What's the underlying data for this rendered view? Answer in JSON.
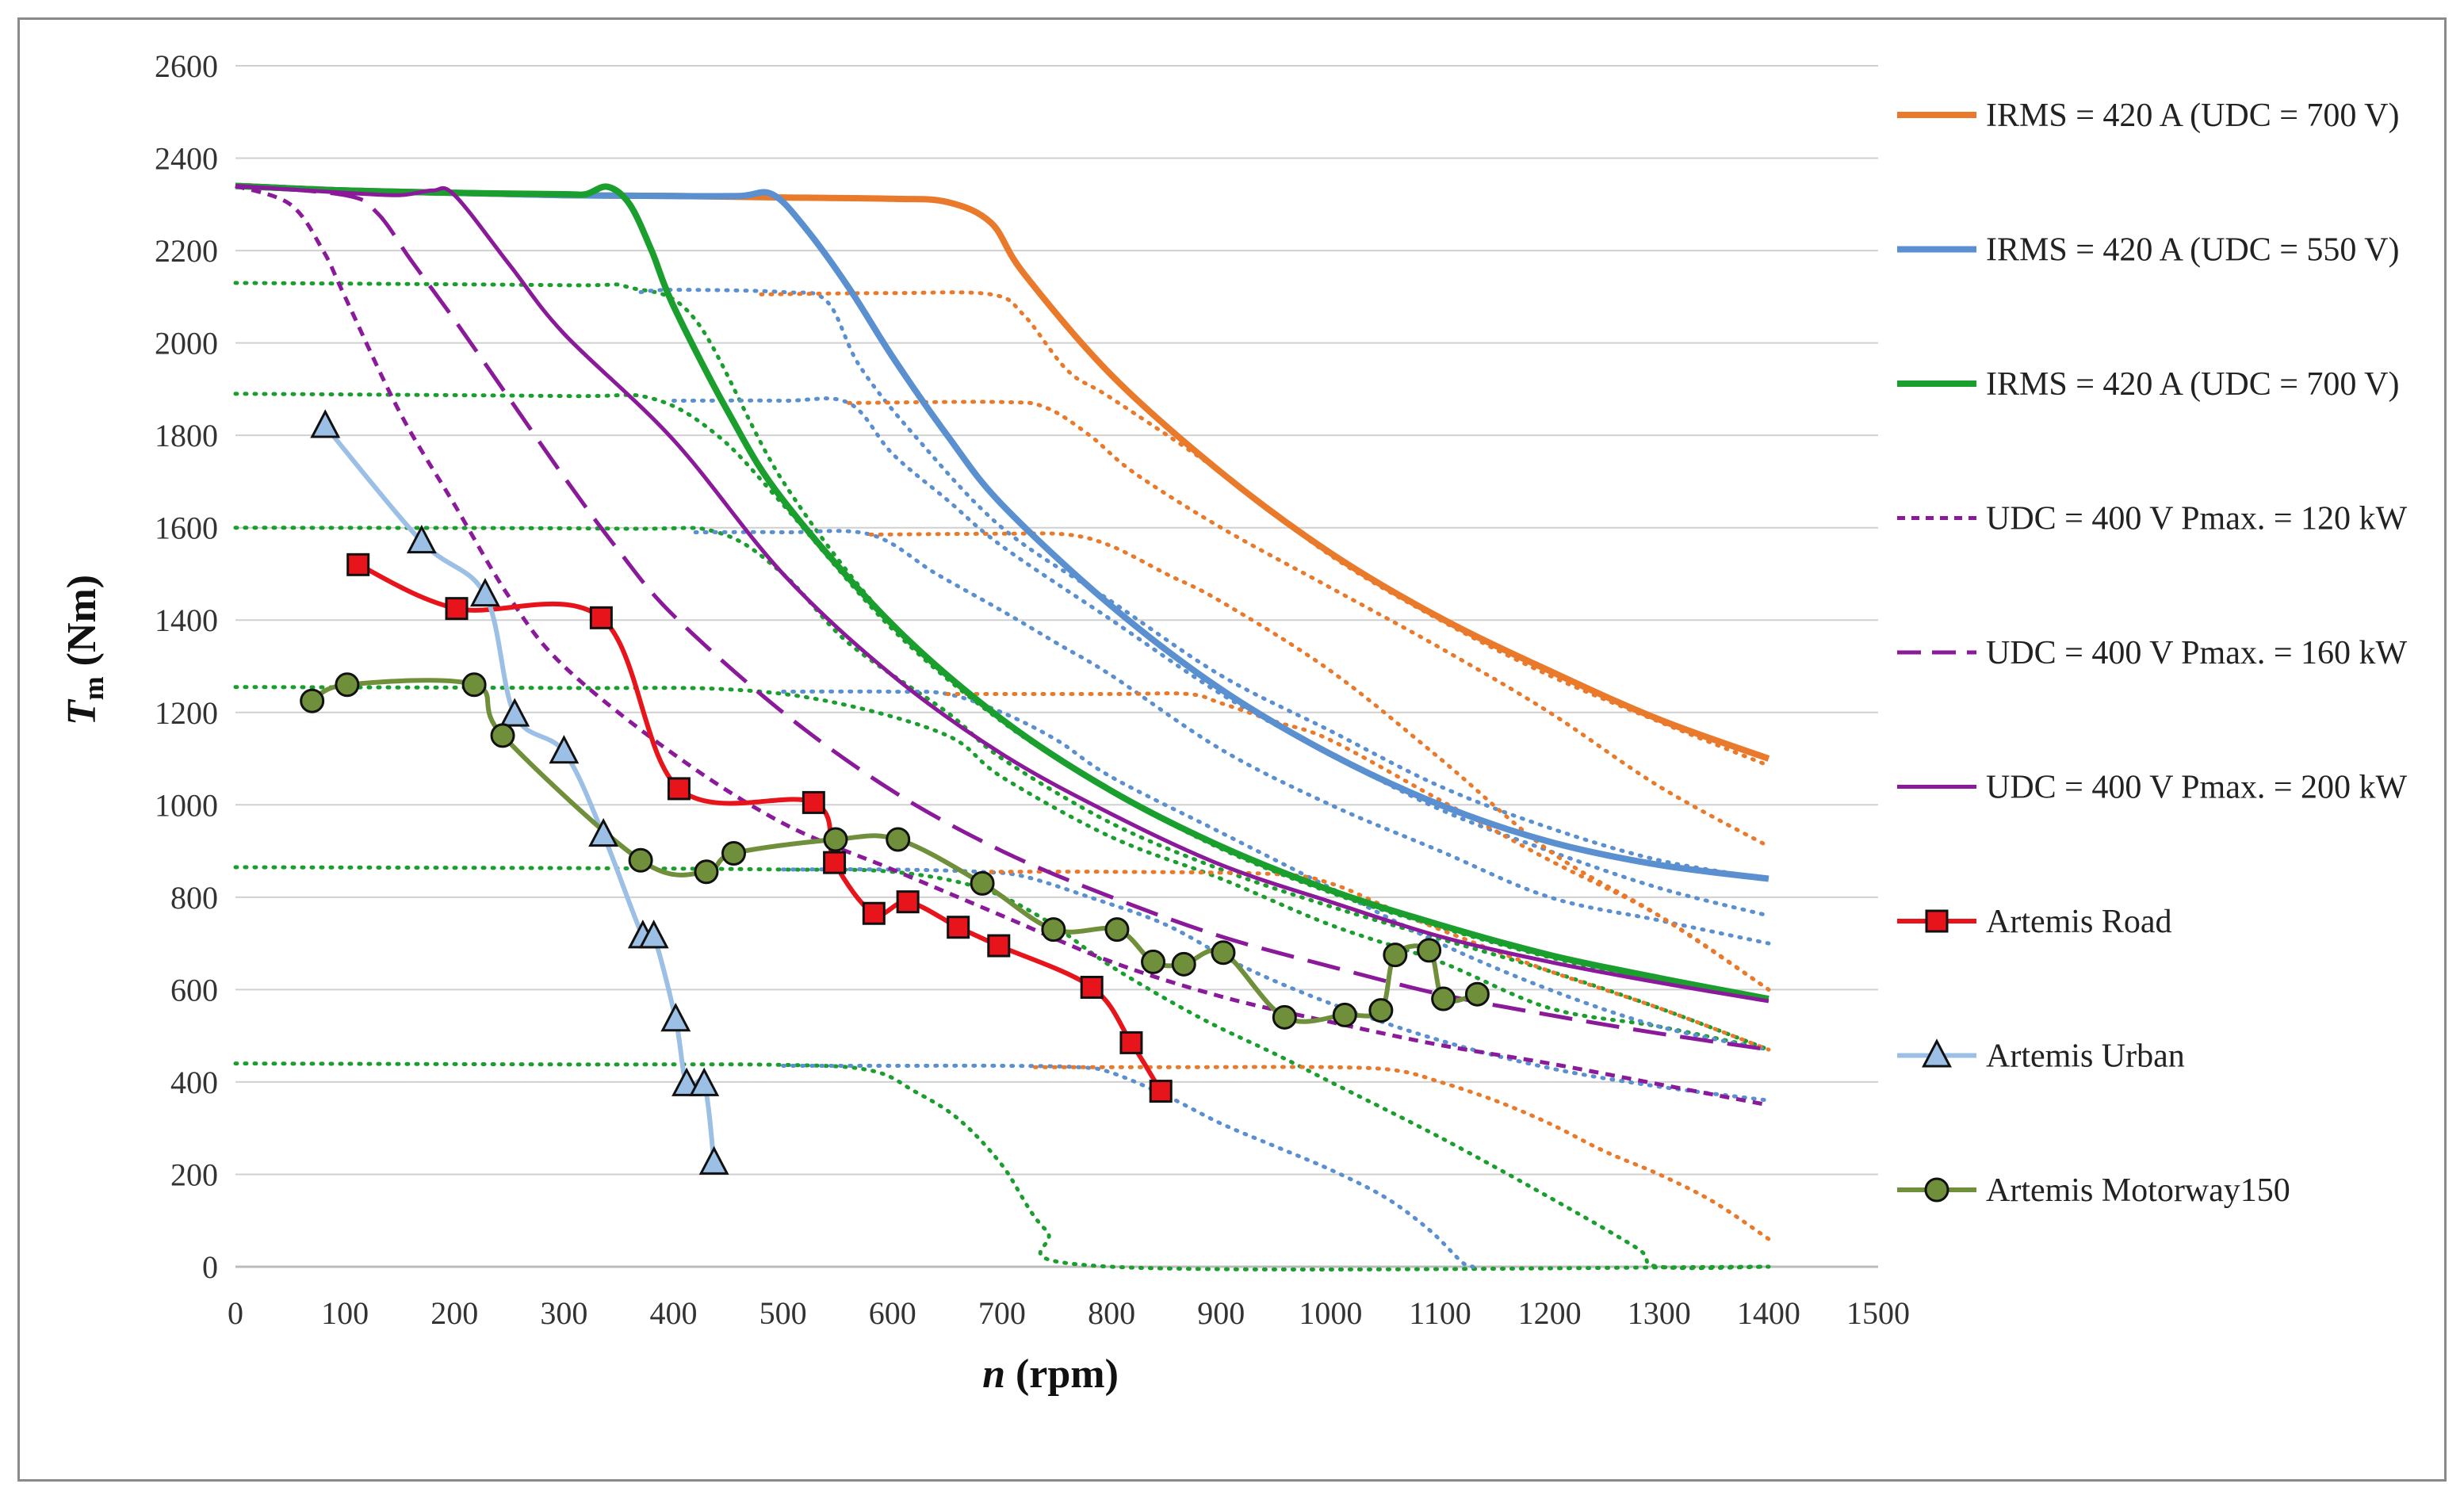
{
  "chart_data": {
    "type": "line",
    "title": "",
    "xlabel": {
      "italic": "n",
      "rest": " (rpm)"
    },
    "ylabel": {
      "italic": "T",
      "sub": "m",
      "rest": " (Nm)"
    },
    "xlim": [
      0,
      1500
    ],
    "ylim": [
      0,
      2600
    ],
    "xticks": [
      0,
      100,
      200,
      300,
      400,
      500,
      600,
      700,
      800,
      900,
      1000,
      1100,
      1200,
      1300,
      1400,
      1500
    ],
    "yticks": [
      0,
      200,
      400,
      600,
      800,
      1000,
      1200,
      1400,
      1600,
      1800,
      2000,
      2200,
      2400,
      2600
    ],
    "grid": "horizontal",
    "legend_position": "right",
    "colors": {
      "orange": "#e97a2b",
      "blue": "#5a8fd0",
      "green": "#1a9e2e",
      "purple": "#8b1a9b",
      "red": "#e8141b",
      "light_blue": "#9cbfe6",
      "olive": "#6f8f3a",
      "grid": "#d0d0d0"
    },
    "series": [
      {
        "name": "IRMS = 420 A (UDC = 700 V)",
        "color": "#e97a2b",
        "style": "solid",
        "width": 8,
        "x": [
          0,
          100,
          200,
          300,
          400,
          500,
          600,
          650,
          690,
          720,
          800,
          900,
          1000,
          1100,
          1200,
          1300,
          1400
        ],
        "y": [
          2340,
          2330,
          2325,
          2320,
          2318,
          2315,
          2312,
          2305,
          2260,
          2150,
          1930,
          1720,
          1545,
          1405,
          1290,
          1185,
          1100
        ]
      },
      {
        "name": "IRMS = 420 A (UDC = 550 V)",
        "color": "#5a8fd0",
        "style": "solid",
        "width": 8,
        "x": [
          0,
          100,
          200,
          300,
          400,
          460,
          490,
          520,
          560,
          600,
          650,
          700,
          800,
          900,
          1000,
          1100,
          1200,
          1300,
          1400
        ],
        "y": [
          2340,
          2330,
          2325,
          2320,
          2318,
          2318,
          2322,
          2250,
          2120,
          1970,
          1800,
          1650,
          1430,
          1250,
          1110,
          1000,
          920,
          870,
          840
        ]
      },
      {
        "name": "IRMS = 420 A (UDC = 700 V)",
        "color": "#1a9e2e",
        "style": "solid",
        "width": 8,
        "x": [
          0,
          100,
          200,
          300,
          320,
          340,
          360,
          380,
          400,
          450,
          500,
          600,
          700,
          800,
          900,
          1000,
          1100,
          1200,
          1300,
          1400
        ],
        "y": [
          2340,
          2330,
          2325,
          2322,
          2322,
          2338,
          2300,
          2200,
          2080,
          1850,
          1660,
          1390,
          1185,
          1030,
          910,
          815,
          740,
          675,
          625,
          580
        ]
      },
      {
        "name": "UDC = 400 V Pmax. = 120 kW",
        "color": "#8b1a9b",
        "style": "short-dash",
        "width": 5,
        "x": [
          0,
          50,
          80,
          100,
          150,
          200,
          250,
          300,
          400,
          500,
          600,
          700,
          800,
          900,
          1000,
          1100,
          1200,
          1300,
          1400
        ],
        "y": [
          2340,
          2300,
          2200,
          2100,
          1850,
          1650,
          1450,
          1300,
          1110,
          960,
          860,
          760,
          660,
          585,
          530,
          480,
          440,
          395,
          350
        ]
      },
      {
        "name": "UDC = 400 V Pmax. = 160 kW",
        "color": "#8b1a9b",
        "style": "long-dash",
        "width": 5,
        "x": [
          0,
          100,
          130,
          160,
          200,
          250,
          300,
          350,
          400,
          500,
          600,
          700,
          800,
          900,
          1000,
          1100,
          1200,
          1300,
          1400
        ],
        "y": [
          2340,
          2320,
          2280,
          2180,
          2050,
          1880,
          1710,
          1550,
          1410,
          1200,
          1030,
          900,
          800,
          715,
          650,
          590,
          545,
          505,
          470
        ]
      },
      {
        "name": "UDC = 400 V Pmax. = 200 kW",
        "color": "#8b1a9b",
        "style": "solid",
        "width": 5,
        "x": [
          0,
          100,
          150,
          180,
          200,
          250,
          300,
          400,
          500,
          600,
          700,
          800,
          900,
          1000,
          1100,
          1200,
          1300,
          1400
        ],
        "y": [
          2340,
          2325,
          2320,
          2330,
          2320,
          2170,
          2020,
          1790,
          1500,
          1280,
          1110,
          980,
          870,
          790,
          715,
          660,
          615,
          575
        ]
      },
      {
        "name": "Artemis Road",
        "color": "#e8141b",
        "style": "solid",
        "width": 6,
        "marker": "square",
        "markerColor": "#e8141b",
        "x": [
          112,
          202,
          334,
          405,
          528,
          547,
          583,
          614,
          660,
          697,
          782,
          818,
          845
        ],
        "y": [
          1520,
          1425,
          1405,
          1035,
          1005,
          875,
          765,
          790,
          735,
          695,
          605,
          485,
          380
        ]
      },
      {
        "name": "Artemis Urban",
        "color": "#9cbfe6",
        "style": "solid",
        "width": 6,
        "marker": "triangle",
        "markerColor": "#9cbfe6",
        "x": [
          82,
          170,
          228,
          255,
          300,
          336,
          372,
          382,
          402,
          412,
          428,
          437
        ],
        "y": [
          1820,
          1570,
          1455,
          1195,
          1115,
          935,
          715,
          715,
          535,
          395,
          395,
          225
        ]
      },
      {
        "name": "Artemis Motorway150",
        "color": "#6f8f3a",
        "style": "solid",
        "width": 6,
        "marker": "circle",
        "markerColor": "#6f8f3a",
        "x": [
          70,
          102,
          218,
          244,
          370,
          430,
          455,
          548,
          605,
          682,
          747,
          805,
          838,
          866,
          902,
          958,
          1013,
          1046,
          1059,
          1090,
          1103,
          1134
        ],
        "y": [
          1225,
          1260,
          1260,
          1150,
          880,
          855,
          895,
          925,
          925,
          830,
          730,
          730,
          660,
          655,
          680,
          540,
          545,
          555,
          675,
          685,
          580,
          590
        ]
      }
    ],
    "dotted_curves": [
      {
        "color": "#1a9e2e",
        "x": [
          0,
          300,
          360,
          420,
          500,
          600,
          700,
          800,
          900,
          1000,
          1100,
          1200,
          1300,
          1400
        ],
        "y": [
          2130,
          2125,
          2120,
          2050,
          1700,
          1390,
          1185,
          1030,
          910,
          815,
          740,
          675,
          625,
          580
        ]
      },
      {
        "color": "#1a9e2e",
        "x": [
          0,
          300,
          380,
          440,
          500,
          600,
          700,
          800,
          900,
          1000,
          1100,
          1200,
          1300,
          1400
        ],
        "y": [
          1890,
          1885,
          1880,
          1800,
          1650,
          1380,
          1180,
          1030,
          905,
          810,
          735,
          670,
          620,
          575
        ]
      },
      {
        "color": "#1a9e2e",
        "x": [
          0,
          350,
          440,
          500,
          560,
          650,
          700,
          800,
          900,
          1000,
          1100,
          1200,
          1300,
          1400
        ],
        "y": [
          1600,
          1598,
          1590,
          1500,
          1350,
          1200,
          1100,
          960,
          860,
          780,
          710,
          640,
          560,
          470
        ]
      },
      {
        "color": "#1a9e2e",
        "x": [
          0,
          300,
          450,
          550,
          650,
          700,
          800,
          900,
          1000,
          1100,
          1200,
          1300,
          1400
        ],
        "y": [
          1255,
          1253,
          1250,
          1220,
          1150,
          1060,
          930,
          840,
          740,
          660,
          560,
          520,
          470
        ]
      },
      {
        "color": "#1a9e2e",
        "x": [
          0,
          300,
          500,
          600,
          680,
          740,
          800,
          880,
          950,
          1000,
          1100,
          1200,
          1280,
          1300,
          1400
        ],
        "y": [
          865,
          863,
          860,
          855,
          820,
          750,
          650,
          540,
          460,
          400,
          280,
          150,
          40,
          0,
          0
        ]
      },
      {
        "color": "#1a9e2e",
        "x": [
          0,
          300,
          500,
          580,
          620,
          660,
          700,
          740,
          800,
          1400
        ],
        "y": [
          440,
          438,
          437,
          425,
          380,
          320,
          220,
          80,
          0,
          0
        ]
      },
      {
        "color": "#5a8fd0",
        "x": [
          370,
          400,
          500,
          540,
          570,
          620,
          700,
          800,
          900,
          1000,
          1100,
          1200,
          1300,
          1400
        ],
        "y": [
          2110,
          2115,
          2110,
          2090,
          1950,
          1800,
          1600,
          1440,
          1280,
          1160,
          1040,
          950,
          880,
          840
        ]
      },
      {
        "color": "#5a8fd0",
        "x": [
          400,
          500,
          560,
          600,
          650,
          700,
          800,
          900,
          1000,
          1100,
          1200,
          1300,
          1400
        ],
        "y": [
          1875,
          1875,
          1870,
          1760,
          1660,
          1560,
          1400,
          1240,
          1110,
          990,
          900,
          820,
          760
        ]
      },
      {
        "color": "#5a8fd0",
        "x": [
          420,
          500,
          580,
          640,
          700,
          750,
          800,
          900,
          1000,
          1100,
          1200,
          1300,
          1400
        ],
        "y": [
          1590,
          1590,
          1585,
          1500,
          1420,
          1350,
          1280,
          1120,
          1000,
          900,
          800,
          750,
          700
        ]
      },
      {
        "color": "#5a8fd0",
        "x": [
          500,
          600,
          650,
          700,
          750,
          800,
          900,
          1000,
          1100,
          1200,
          1300,
          1400
        ],
        "y": [
          1245,
          1245,
          1240,
          1200,
          1140,
          1060,
          940,
          820,
          700,
          600,
          520,
          470
        ]
      },
      {
        "color": "#5a8fd0",
        "x": [
          500,
          600,
          680,
          720,
          780,
          850,
          920,
          1000,
          1100,
          1200,
          1300,
          1400
        ],
        "y": [
          860,
          860,
          855,
          845,
          800,
          740,
          650,
          570,
          490,
          430,
          390,
          360
        ]
      },
      {
        "color": "#5a8fd0",
        "x": [
          500,
          600,
          700,
          770,
          800,
          850,
          900,
          950,
          1000,
          1050,
          1090,
          1120,
          1130
        ],
        "y": [
          435,
          435,
          435,
          432,
          420,
          370,
          310,
          260,
          210,
          150,
          80,
          10,
          0
        ]
      },
      {
        "color": "#e97a2b",
        "x": [
          480,
          600,
          690,
          720,
          760,
          800,
          900,
          1000,
          1100,
          1200,
          1300,
          1400
        ],
        "y": [
          2105,
          2108,
          2105,
          2060,
          1940,
          1880,
          1720,
          1540,
          1400,
          1280,
          1180,
          1085
        ]
      },
      {
        "color": "#e97a2b",
        "x": [
          560,
          700,
          740,
          780,
          820,
          900,
          1000,
          1100,
          1200,
          1300,
          1400
        ],
        "y": [
          1870,
          1872,
          1860,
          1800,
          1720,
          1600,
          1470,
          1340,
          1200,
          1040,
          910
        ]
      },
      {
        "color": "#e97a2b",
        "x": [
          580,
          700,
          760,
          800,
          850,
          900,
          1000,
          1100,
          1200,
          1300,
          1400
        ],
        "y": [
          1585,
          1587,
          1585,
          1560,
          1500,
          1440,
          1290,
          1100,
          900,
          760,
          600
        ]
      },
      {
        "color": "#e97a2b",
        "x": [
          650,
          800,
          870,
          900,
          950,
          1000,
          1100,
          1200,
          1300,
          1400
        ],
        "y": [
          1240,
          1240,
          1240,
          1220,
          1180,
          1140,
          1010,
          880,
          760,
          600
        ]
      },
      {
        "color": "#e97a2b",
        "x": [
          690,
          800,
          950,
          1000,
          1050,
          1100,
          1200,
          1300,
          1400
        ],
        "y": [
          855,
          855,
          850,
          830,
          780,
          730,
          640,
          560,
          470
        ]
      },
      {
        "color": "#e97a2b",
        "x": [
          730,
          850,
          1000,
          1060,
          1100,
          1150,
          1200,
          1250,
          1300,
          1350,
          1400
        ],
        "y": [
          432,
          432,
          432,
          425,
          400,
          360,
          310,
          250,
          200,
          140,
          60
        ]
      }
    ]
  }
}
